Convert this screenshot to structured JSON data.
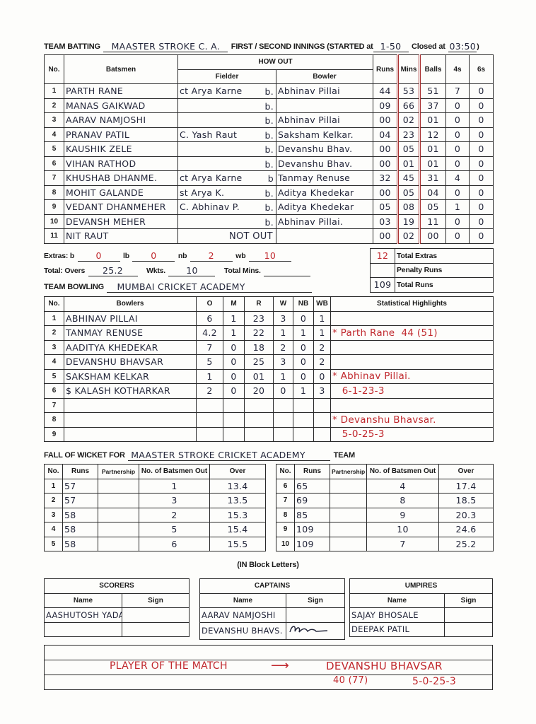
{
  "batting": {
    "label": "TEAM BATTING",
    "team": "MAASTER STROKE C. A.",
    "innings_label": "FIRST / SECOND INNINGS (STARTED at",
    "started": "1-50",
    "closed_label": "Closed at",
    "closed": "03:50",
    "closed_suffix": ")",
    "headers": {
      "no": "No.",
      "batsmen": "Batsmen",
      "how_out": "HOW OUT",
      "fielder": "Fielder",
      "bowler": "Bowler",
      "runs": "Runs",
      "mins": "Mins",
      "balls": "Balls",
      "fours": "4s",
      "sixes": "6s"
    },
    "rows": [
      {
        "no": "1",
        "batsman": "PARTH RANE",
        "fielder": "ct Arya Karne",
        "b": "b.",
        "bowler": "Abhinav Pillai",
        "runs": "44",
        "mins": "53",
        "balls": "51",
        "fours": "7",
        "sixes": "0"
      },
      {
        "no": "2",
        "batsman": "MANAS GAIKWAD",
        "fielder": "",
        "b": "b.",
        "bowler": "",
        "runs": "09",
        "mins": "66",
        "balls": "37",
        "fours": "0",
        "sixes": "0"
      },
      {
        "no": "3",
        "batsman": "AARAV NAMJOSHI",
        "fielder": "",
        "b": "b.",
        "bowler": "Abhinav Pillai",
        "runs": "00",
        "mins": "02",
        "balls": "01",
        "fours": "0",
        "sixes": "0"
      },
      {
        "no": "4",
        "batsman": "PRANAV PATIL",
        "fielder": "C. Yash Raut",
        "b": "b.",
        "bowler": "Saksham Kelkar.",
        "runs": "04",
        "mins": "23",
        "balls": "12",
        "fours": "0",
        "sixes": "0"
      },
      {
        "no": "5",
        "batsman": "KAUSHIK ZELE",
        "fielder": "",
        "b": "b.",
        "bowler": "Devanshu Bhav.",
        "runs": "00",
        "mins": "05",
        "balls": "01",
        "fours": "0",
        "sixes": "0"
      },
      {
        "no": "6",
        "batsman": "VIHAN RATHOD",
        "fielder": "",
        "b": "b.",
        "bowler": "Devanshu Bhav.",
        "runs": "00",
        "mins": "01",
        "balls": "01",
        "fours": "0",
        "sixes": "0"
      },
      {
        "no": "7",
        "batsman": "KHUSHAB DHANME.",
        "fielder": "ct Arya Karne",
        "b": "b",
        "bowler": "Tanmay Renuse",
        "runs": "32",
        "mins": "45",
        "balls": "31",
        "fours": "4",
        "sixes": "0"
      },
      {
        "no": "8",
        "batsman": "MOHIT GALANDE",
        "fielder": "st Arya K.",
        "b": "b.",
        "bowler": "Aditya Khedekar",
        "runs": "00",
        "mins": "05",
        "balls": "04",
        "fours": "0",
        "sixes": "0"
      },
      {
        "no": "9",
        "batsman": "VEDANT DHANMEHER",
        "fielder": "C. Abhinav P.",
        "b": "b.",
        "bowler": "Aditya Khedekar",
        "runs": "05",
        "mins": "08",
        "balls": "05",
        "fours": "1",
        "sixes": "0"
      },
      {
        "no": "10",
        "batsman": "DEVANSH MEHER",
        "fielder": "",
        "b": "b.",
        "bowler": "Abhinav Pillai.",
        "runs": "03",
        "mins": "19",
        "balls": "11",
        "fours": "0",
        "sixes": "0"
      },
      {
        "no": "11",
        "batsman": "NIT RAUT",
        "fielder": "NOT OUT",
        "b": "",
        "bowler": "",
        "runs": "00",
        "mins": "02",
        "balls": "00",
        "fours": "0",
        "sixes": "0"
      }
    ],
    "extras": {
      "label": "Extras: b",
      "b": "0",
      "lb_label": "lb",
      "lb": "0",
      "nb_label": "nb",
      "nb": "2",
      "wb_label": "wb",
      "wb": "10"
    },
    "total": {
      "overs_label": "Total: Overs",
      "overs": "25.2",
      "wkts_label": "Wkts.",
      "wkts": "10",
      "mins_label": "Total Mins.",
      "mins": ""
    },
    "summary": {
      "total_extras_label": "Total Extras",
      "total_extras": "12",
      "penalty_label": "Penalty Runs",
      "penalty": "",
      "total_runs_label": "Total Runs",
      "total_runs": "109"
    }
  },
  "bowling": {
    "label": "TEAM BOWLING",
    "team": "MUMBAI CRICKET ACADEMY",
    "headers": {
      "no": "No.",
      "bowlers": "Bowlers",
      "o": "O",
      "m": "M",
      "r": "R",
      "w": "W",
      "nb": "NB",
      "wb": "WB",
      "highlights": "Statistical Highlights"
    },
    "rows": [
      {
        "no": "1",
        "bowler": "ABHINAV PILLAI",
        "o": "6",
        "m": "1",
        "r": "23",
        "w": "3",
        "nb": "0",
        "wb": "1",
        "highlight": ""
      },
      {
        "no": "2",
        "bowler": "TANMAY RENUSE",
        "o": "4.2",
        "m": "1",
        "r": "22",
        "w": "1",
        "nb": "1",
        "wb": "1",
        "highlight": "* Parth Rane  44 (51)"
      },
      {
        "no": "3",
        "bowler": "AADITYA KHEDEKAR",
        "o": "7",
        "m": "0",
        "r": "18",
        "w": "2",
        "nb": "0",
        "wb": "2",
        "highlight": ""
      },
      {
        "no": "4",
        "bowler": "DEVANSHU BHAVSAR",
        "o": "5",
        "m": "0",
        "r": "25",
        "w": "3",
        "nb": "0",
        "wb": "2",
        "highlight": ""
      },
      {
        "no": "5",
        "bowler": "SAKSHAM KELKAR",
        "o": "1",
        "m": "0",
        "r": "01",
        "w": "1",
        "nb": "0",
        "wb": "0",
        "highlight": "* Abhinav Pillai."
      },
      {
        "no": "6",
        "bowler": "$ KALASH KOTHARKAR",
        "o": "2",
        "m": "0",
        "r": "20",
        "w": "0",
        "nb": "1",
        "wb": "3",
        "highlight": "   6-1-23-3"
      },
      {
        "no": "7",
        "bowler": "",
        "o": "",
        "m": "",
        "r": "",
        "w": "",
        "nb": "",
        "wb": "",
        "highlight": ""
      },
      {
        "no": "8",
        "bowler": "",
        "o": "",
        "m": "",
        "r": "",
        "w": "",
        "nb": "",
        "wb": "",
        "highlight": "* Devanshu Bhavsar."
      },
      {
        "no": "9",
        "bowler": "",
        "o": "",
        "m": "",
        "r": "",
        "w": "",
        "nb": "",
        "wb": "",
        "highlight": "   5-0-25-3"
      }
    ]
  },
  "fall_of_wicket": {
    "label": "FALL OF WICKET FOR",
    "team": "MAASTER STROKE CRICKET ACADEMY",
    "suffix": "TEAM",
    "headers": {
      "no": "No.",
      "runs": "Runs",
      "partnership": "Partnership",
      "batsmen_out": "No. of Batsmen Out",
      "over": "Over"
    },
    "rows": [
      {
        "no": "1",
        "runs": "57",
        "partnership": "",
        "batsmen_out": "1",
        "over": "13.4"
      },
      {
        "no": "2",
        "runs": "57",
        "partnership": "",
        "batsmen_out": "3",
        "over": "13.5"
      },
      {
        "no": "3",
        "runs": "58",
        "partnership": "",
        "batsmen_out": "2",
        "over": "15.3"
      },
      {
        "no": "4",
        "runs": "58",
        "partnership": "",
        "batsmen_out": "5",
        "over": "15.4"
      },
      {
        "no": "5",
        "runs": "58",
        "partnership": "",
        "batsmen_out": "6",
        "over": "15.5"
      },
      {
        "no": "6",
        "runs": "65",
        "partnership": "",
        "batsmen_out": "4",
        "over": "17.4"
      },
      {
        "no": "7",
        "runs": "69",
        "partnership": "",
        "batsmen_out": "8",
        "over": "18.5"
      },
      {
        "no": "8",
        "runs": "85",
        "partnership": "",
        "batsmen_out": "9",
        "over": "20.3"
      },
      {
        "no": "9",
        "runs": "109",
        "partnership": "",
        "batsmen_out": "10",
        "over": "24.6"
      },
      {
        "no": "10",
        "runs": "109",
        "partnership": "",
        "batsmen_out": "7",
        "over": "25.2"
      }
    ]
  },
  "officials": {
    "note": "(IN Block Letters)",
    "name_label": "Name",
    "sign_label": "Sign",
    "scorers": {
      "title": "SCORERS",
      "names": [
        "AASHUTOSH YADAV",
        ""
      ]
    },
    "captains": {
      "title": "CAPTAINS",
      "names": [
        "AARAV NAMJOSHI",
        "DEVANSHU BHAVS."
      ]
    },
    "umpires": {
      "title": "UMPIRES",
      "names": [
        "SAJAY BHOSALE",
        "DEEPAK PATIL"
      ]
    }
  },
  "player_of_match": {
    "label": "PLAYER OF THE MATCH",
    "arrow": "⟶",
    "name": "DEVANSHU BHAVSAR",
    "batting": "40 (77)",
    "bowling": "5-0-25-3"
  },
  "colors": {
    "ink": "#23263a",
    "red_ink": "#c0282d"
  }
}
